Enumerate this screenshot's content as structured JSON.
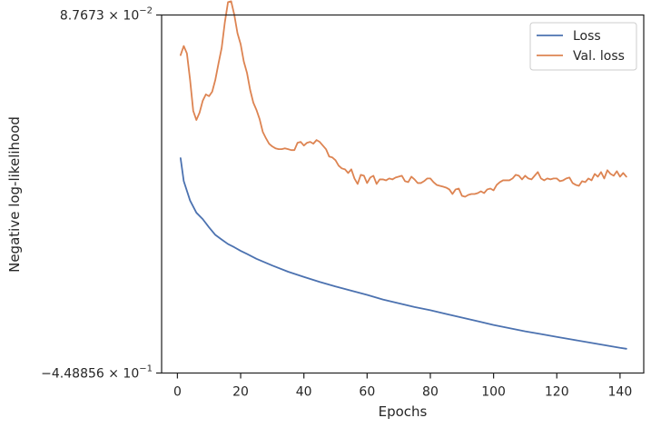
{
  "chart_data": {
    "type": "line",
    "xlabel": "Epochs",
    "ylabel": "Negative log-likelihood",
    "xlim": [
      -5,
      147.5
    ],
    "ylim": [
      -0.448856,
      0.087673
    ],
    "x_ticks": [
      0,
      20,
      40,
      60,
      80,
      100,
      120,
      140
    ],
    "y_ticks": [
      {
        "value": 0.087673,
        "mantissa": "8.7673",
        "exponent": "−2",
        "sign": ""
      },
      {
        "value": -0.448856,
        "mantissa": "4.48856",
        "exponent": "−1",
        "sign": "−"
      }
    ],
    "y_tick_base": "10",
    "y_tick_times": "×",
    "legend_position": "top-right",
    "grid": false,
    "series": [
      {
        "name": "Loss",
        "color": "#4c72b0",
        "x": [
          1,
          2,
          4,
          6,
          8,
          10,
          12,
          14,
          16,
          18,
          20,
          22,
          25,
          30,
          35,
          40,
          45,
          50,
          55,
          60,
          65,
          70,
          75,
          80,
          85,
          90,
          95,
          100,
          105,
          110,
          115,
          120,
          125,
          130,
          135,
          140,
          142
        ],
        "y": [
          -0.1268,
          -0.1612,
          -0.1904,
          -0.2086,
          -0.2182,
          -0.2306,
          -0.2419,
          -0.2488,
          -0.2556,
          -0.2604,
          -0.2658,
          -0.2704,
          -0.2777,
          -0.2877,
          -0.297,
          -0.3048,
          -0.3123,
          -0.3192,
          -0.3255,
          -0.3318,
          -0.3387,
          -0.3443,
          -0.35,
          -0.3548,
          -0.3603,
          -0.3658,
          -0.3713,
          -0.3768,
          -0.3816,
          -0.3864,
          -0.3905,
          -0.3947,
          -0.3988,
          -0.4029,
          -0.407,
          -0.4111,
          -0.4125
        ]
      },
      {
        "name": "Val. loss",
        "color": "#dd8452",
        "x": [
          1,
          2,
          3,
          4,
          5,
          6,
          7,
          8,
          9,
          10,
          11,
          12,
          13,
          14,
          15,
          16,
          17,
          18,
          19,
          20,
          21,
          22,
          23,
          24,
          25,
          26,
          27,
          28,
          29,
          30,
          31,
          32,
          33,
          34,
          35,
          36,
          37,
          38,
          39,
          40,
          41,
          42,
          43,
          44,
          45,
          46,
          47,
          48,
          49,
          50,
          51,
          52,
          53,
          54,
          55,
          56,
          57,
          58,
          59,
          60,
          61,
          62,
          63,
          64,
          65,
          66,
          67,
          68,
          69,
          70,
          71,
          72,
          73,
          74,
          75,
          76,
          77,
          78,
          79,
          80,
          81,
          82,
          83,
          84,
          85,
          86,
          87,
          88,
          89,
          90,
          91,
          92,
          93,
          94,
          95,
          96,
          97,
          98,
          99,
          100,
          101,
          102,
          103,
          104,
          105,
          106,
          107,
          108,
          109,
          110,
          111,
          112,
          113,
          114,
          115,
          116,
          117,
          118,
          119,
          120,
          121,
          122,
          123,
          124,
          125,
          126,
          127,
          128,
          129,
          130,
          131,
          132,
          133,
          134,
          135,
          136,
          137,
          138,
          139,
          140,
          141,
          142
        ],
        "y": [
          0.0275,
          0.0412,
          0.0302,
          -0.0093,
          -0.056,
          -0.0697,
          -0.0587,
          -0.0409,
          -0.0313,
          -0.034,
          -0.0272,
          -0.0093,
          0.0153,
          0.0384,
          0.0767,
          0.1069,
          0.1082,
          0.0877,
          0.0603,
          0.0439,
          0.0179,
          0.0011,
          -0.0245,
          -0.0436,
          -0.0546,
          -0.0683,
          -0.0875,
          -0.097,
          -0.1052,
          -0.1093,
          -0.1121,
          -0.1134,
          -0.1134,
          -0.1121,
          -0.1134,
          -0.1148,
          -0.1148,
          -0.1038,
          -0.1025,
          -0.108,
          -0.1038,
          -0.1025,
          -0.1052,
          -0.0997,
          -0.1025,
          -0.108,
          -0.1134,
          -0.1244,
          -0.1258,
          -0.1299,
          -0.1381,
          -0.1422,
          -0.1436,
          -0.1491,
          -0.1436,
          -0.1573,
          -0.1655,
          -0.1518,
          -0.1532,
          -0.1642,
          -0.1559,
          -0.1532,
          -0.1655,
          -0.1587,
          -0.1587,
          -0.1601,
          -0.1573,
          -0.1587,
          -0.1559,
          -0.1546,
          -0.1532,
          -0.1614,
          -0.1628,
          -0.1546,
          -0.1587,
          -0.1642,
          -0.1642,
          -0.1614,
          -0.1573,
          -0.1573,
          -0.1628,
          -0.1669,
          -0.1683,
          -0.1696,
          -0.171,
          -0.1737,
          -0.1806,
          -0.1737,
          -0.1724,
          -0.1833,
          -0.1847,
          -0.182,
          -0.1806,
          -0.1806,
          -0.1792,
          -0.1765,
          -0.1792,
          -0.1737,
          -0.1724,
          -0.1751,
          -0.1669,
          -0.1628,
          -0.1601,
          -0.1601,
          -0.1601,
          -0.1573,
          -0.1518,
          -0.1532,
          -0.1587,
          -0.1532,
          -0.1573,
          -0.1587,
          -0.1532,
          -0.1477,
          -0.1573,
          -0.1601,
          -0.1573,
          -0.1587,
          -0.1573,
          -0.1573,
          -0.1614,
          -0.1601,
          -0.1573,
          -0.1559,
          -0.1642,
          -0.1669,
          -0.1683,
          -0.1614,
          -0.1628,
          -0.1573,
          -0.1601,
          -0.1505,
          -0.1546,
          -0.1477,
          -0.1573,
          -0.145,
          -0.1505,
          -0.1532,
          -0.1464,
          -0.1546,
          -0.1491,
          -0.1546
        ]
      }
    ]
  }
}
